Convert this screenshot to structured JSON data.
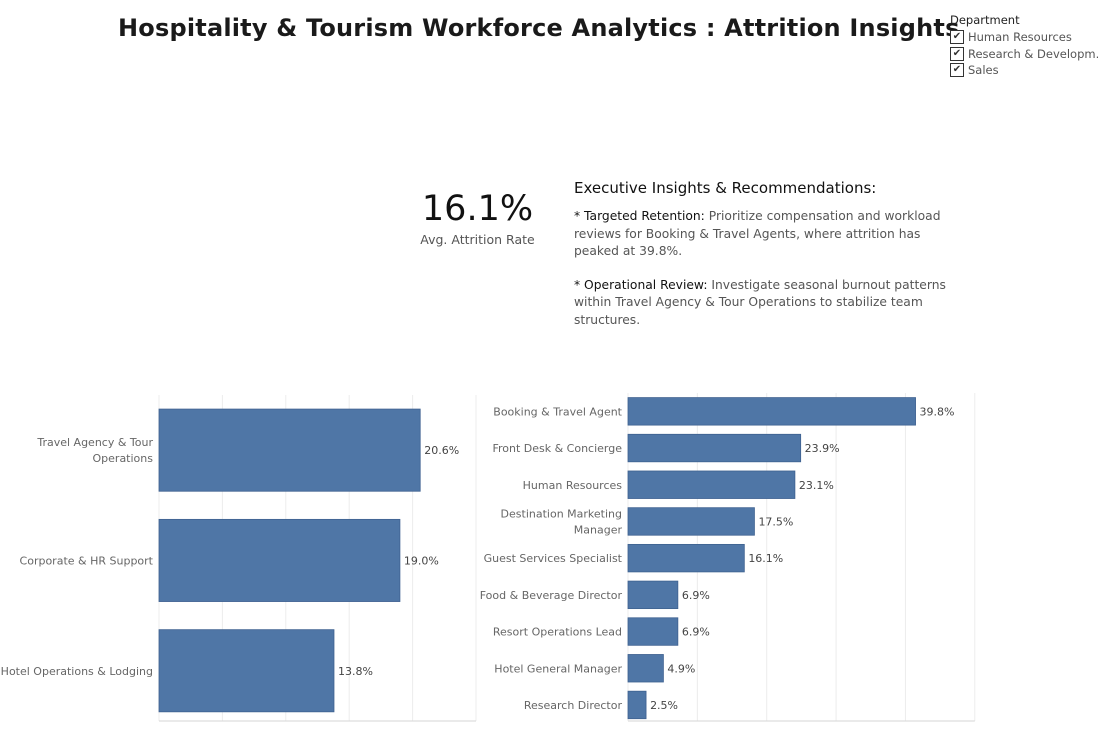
{
  "title": "Hospitality & Tourism Workforce Analytics : Attrition Insights",
  "filter": {
    "title": "Department",
    "items": [
      {
        "label": "Human Resources",
        "checked": true
      },
      {
        "label": "Research & Developm..",
        "checked": true
      },
      {
        "label": "Sales",
        "checked": true
      }
    ]
  },
  "kpi": {
    "value": "16.1%",
    "label": "Avg. Attrition Rate"
  },
  "insights": {
    "heading": "Executive Insights & Recommendations:",
    "items": [
      {
        "key": "* Targeted Retention:",
        "text": "Prioritize compensation and workload reviews for Booking & Travel Agents, where attrition has peaked at 39.8%."
      },
      {
        "key": "* Operational Review:",
        "text": "Investigate seasonal burnout patterns within Travel Agency & Tour Operations to stabilize team structures."
      }
    ]
  },
  "colors": {
    "bar": "#4f76a6",
    "bar_stroke": "#3e6190"
  },
  "chart_data": [
    {
      "type": "bar",
      "orientation": "horizontal",
      "categories": [
        [
          "Travel Agency & Tour",
          "Operations"
        ],
        [
          "Corporate & HR Support"
        ],
        [
          "Hotel Operations & Lodging"
        ]
      ],
      "values": [
        20.6,
        19.0,
        13.8
      ],
      "value_labels": [
        "20.6%",
        "19.0%",
        "13.8%"
      ],
      "xlim": [
        0,
        25
      ],
      "grid": true
    },
    {
      "type": "bar",
      "orientation": "horizontal",
      "categories": [
        [
          "Booking & Travel Agent"
        ],
        [
          "Front Desk & Concierge"
        ],
        [
          "Human Resources"
        ],
        [
          "Destination Marketing",
          "Manager"
        ],
        [
          "Guest Services Specialist"
        ],
        [
          "Food & Beverage Director"
        ],
        [
          "Resort Operations Lead"
        ],
        [
          "Hotel General Manager"
        ],
        [
          "Research Director"
        ]
      ],
      "values": [
        39.8,
        23.9,
        23.1,
        17.5,
        16.1,
        6.9,
        6.9,
        4.9,
        2.5
      ],
      "value_labels": [
        "39.8%",
        "23.9%",
        "23.1%",
        "17.5%",
        "16.1%",
        "6.9%",
        "6.9%",
        "4.9%",
        "2.5%"
      ],
      "xlim": [
        0,
        48
      ],
      "grid": true
    }
  ]
}
